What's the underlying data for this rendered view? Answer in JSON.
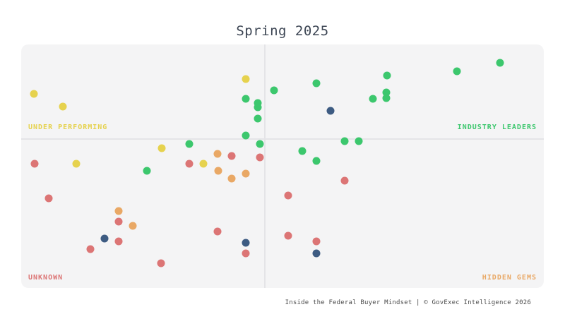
{
  "title": "Spring 2025",
  "footer": "Inside the Federal Buyer Mindset | © GovExec Intelligence 2026",
  "quadrant_labels": {
    "top_left": "UNDER PERFORMING",
    "top_right": "INDUSTRY LEADERS",
    "bottom_left": "UNKNOWN",
    "bottom_right": "HIDDEN GEMS"
  },
  "colors": {
    "under_performing": "#e6d24e",
    "industry_leaders": "#3cc76d",
    "unknown": "#dc7575",
    "hidden_gems": "#e9a865",
    "neutral_navy": "#3d5b82",
    "chart_background": "#f4f4f5",
    "divider": "#e4e4e7",
    "title_text": "#3d4654"
  },
  "chart_data": {
    "type": "scatter",
    "title": "Spring 2025",
    "xlabel": "",
    "ylabel": "",
    "x_range": [
      0,
      100
    ],
    "y_range": [
      0,
      100
    ],
    "grid": false,
    "legend_position": "none",
    "axes_visible": false,
    "dividers": {
      "x_pct": 46.5,
      "y_pct_from_top": 38.55
    },
    "quadrants": {
      "top_left": "UNDER PERFORMING",
      "top_right": "INDUSTRY LEADERS",
      "bottom_left": "UNKNOWN",
      "bottom_right": "HIDDEN GEMS"
    },
    "series": [
      {
        "name": "yellow",
        "color": "#e6d24e",
        "points": [
          [
            2.4,
            79.7
          ],
          [
            8.0,
            74.5
          ],
          [
            43.0,
            85.8
          ],
          [
            10.5,
            51.0
          ],
          [
            26.9,
            57.4
          ],
          [
            34.9,
            51.0
          ]
        ]
      },
      {
        "name": "green",
        "color": "#3cc76d",
        "points": [
          [
            48.4,
            81.2
          ],
          [
            56.5,
            84.1
          ],
          [
            70.0,
            87.2
          ],
          [
            67.3,
            77.7
          ],
          [
            69.9,
            80.3
          ],
          [
            69.9,
            78.0
          ],
          [
            83.4,
            89.0
          ],
          [
            91.6,
            92.5
          ],
          [
            43.0,
            77.7
          ],
          [
            45.3,
            75.9
          ],
          [
            45.3,
            74.2
          ],
          [
            45.3,
            69.6
          ],
          [
            43.0,
            62.6
          ],
          [
            32.2,
            59.1
          ],
          [
            45.7,
            59.1
          ],
          [
            61.9,
            60.3
          ],
          [
            64.6,
            60.3
          ],
          [
            53.8,
            56.2
          ],
          [
            56.5,
            52.2
          ],
          [
            24.1,
            48.1
          ]
        ]
      },
      {
        "name": "navy",
        "color": "#3d5b82",
        "points": [
          [
            59.2,
            72.8
          ],
          [
            15.9,
            20.3
          ],
          [
            43.0,
            18.6
          ],
          [
            56.5,
            14.2
          ]
        ]
      },
      {
        "name": "red",
        "color": "#dc7575",
        "points": [
          [
            2.6,
            51.0
          ],
          [
            5.3,
            36.8
          ],
          [
            32.2,
            51.0
          ],
          [
            40.3,
            54.2
          ],
          [
            45.7,
            53.6
          ],
          [
            13.2,
            15.9
          ],
          [
            18.6,
            19.1
          ],
          [
            26.8,
            10.1
          ],
          [
            37.6,
            23.2
          ],
          [
            43.0,
            14.2
          ],
          [
            51.1,
            38.0
          ],
          [
            61.9,
            44.1
          ],
          [
            51.1,
            21.4
          ],
          [
            56.5,
            19.1
          ],
          [
            18.6,
            27.2
          ]
        ]
      },
      {
        "name": "orange",
        "color": "#e9a865",
        "points": [
          [
            37.6,
            55.1
          ],
          [
            37.7,
            48.1
          ],
          [
            40.3,
            44.9
          ],
          [
            43.0,
            47.0
          ],
          [
            18.6,
            31.6
          ],
          [
            21.4,
            25.5
          ]
        ]
      }
    ]
  }
}
